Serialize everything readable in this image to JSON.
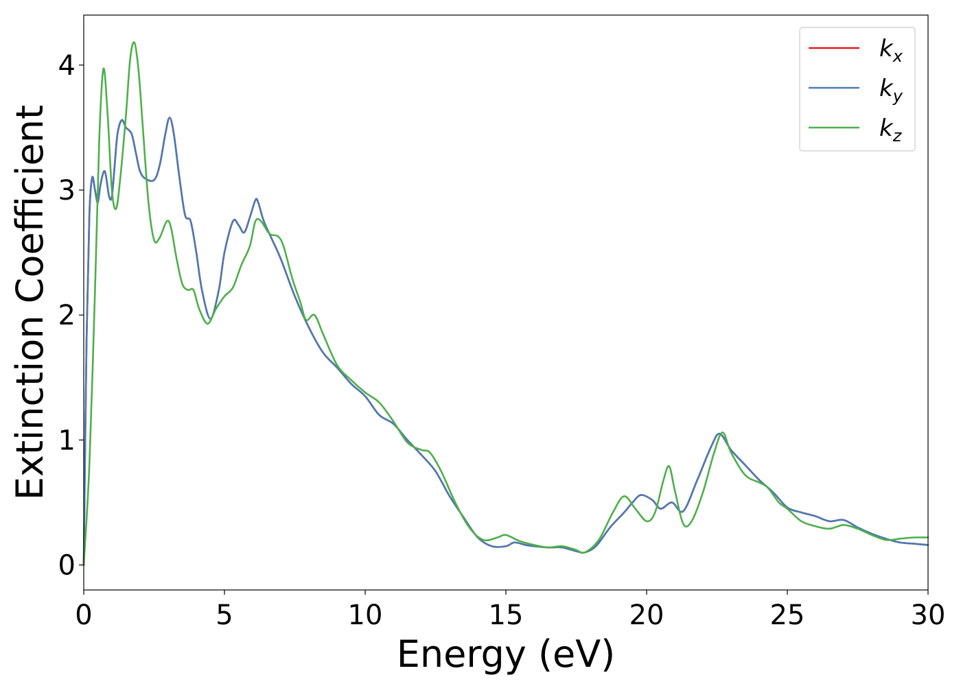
{
  "chart_data": {
    "type": "line",
    "xlabel": "Energy (eV)",
    "ylabel": "Extinction Coefficient",
    "xlim": [
      0,
      30
    ],
    "ylim": [
      -0.2,
      4.4
    ],
    "xticks": [
      0,
      5,
      10,
      15,
      20,
      25,
      30
    ],
    "xtick_labels": [
      "0",
      "5",
      "10",
      "15",
      "20",
      "25",
      "30"
    ],
    "yticks": [
      0,
      1,
      2,
      3,
      4
    ],
    "ytick_labels": [
      "0",
      "1",
      "2",
      "3",
      "4"
    ],
    "grid": false,
    "legend_position": "top-right",
    "series": [
      {
        "name": "k",
        "subscript": "x",
        "color": "#e41a1c",
        "points": [
          [
            0,
            0
          ],
          [
            0.1,
            1.8
          ],
          [
            0.2,
            2.8
          ],
          [
            0.3,
            3.1
          ],
          [
            0.4,
            3.0
          ],
          [
            0.5,
            2.9
          ],
          [
            0.6,
            3.05
          ],
          [
            0.75,
            3.15
          ],
          [
            0.9,
            2.95
          ],
          [
            1.0,
            2.95
          ],
          [
            1.1,
            3.2
          ],
          [
            1.2,
            3.45
          ],
          [
            1.35,
            3.56
          ],
          [
            1.5,
            3.5
          ],
          [
            1.7,
            3.45
          ],
          [
            1.85,
            3.3
          ],
          [
            2.0,
            3.15
          ],
          [
            2.2,
            3.09
          ],
          [
            2.5,
            3.08
          ],
          [
            2.7,
            3.2
          ],
          [
            2.9,
            3.45
          ],
          [
            3.05,
            3.58
          ],
          [
            3.2,
            3.45
          ],
          [
            3.4,
            3.1
          ],
          [
            3.6,
            2.8
          ],
          [
            3.8,
            2.75
          ],
          [
            4.0,
            2.5
          ],
          [
            4.2,
            2.2
          ],
          [
            4.5,
            1.97
          ],
          [
            4.8,
            2.2
          ],
          [
            5.0,
            2.5
          ],
          [
            5.3,
            2.75
          ],
          [
            5.5,
            2.72
          ],
          [
            5.7,
            2.66
          ],
          [
            5.9,
            2.78
          ],
          [
            6.1,
            2.92
          ],
          [
            6.2,
            2.9
          ],
          [
            6.4,
            2.75
          ],
          [
            6.7,
            2.6
          ],
          [
            7.0,
            2.45
          ],
          [
            7.5,
            2.15
          ],
          [
            8.0,
            1.9
          ],
          [
            8.5,
            1.7
          ],
          [
            9.0,
            1.58
          ],
          [
            9.5,
            1.45
          ],
          [
            10.0,
            1.35
          ],
          [
            10.5,
            1.2
          ],
          [
            11.0,
            1.13
          ],
          [
            11.5,
            1.0
          ],
          [
            12.0,
            0.88
          ],
          [
            12.5,
            0.75
          ],
          [
            13.0,
            0.55
          ],
          [
            13.5,
            0.38
          ],
          [
            14.0,
            0.22
          ],
          [
            14.5,
            0.15
          ],
          [
            15.0,
            0.15
          ],
          [
            15.3,
            0.18
          ],
          [
            15.7,
            0.16
          ],
          [
            16.0,
            0.15
          ],
          [
            16.5,
            0.14
          ],
          [
            17.0,
            0.14
          ],
          [
            17.5,
            0.11
          ],
          [
            17.8,
            0.1
          ],
          [
            18.2,
            0.15
          ],
          [
            18.7,
            0.3
          ],
          [
            19.2,
            0.42
          ],
          [
            19.5,
            0.5
          ],
          [
            19.8,
            0.56
          ],
          [
            20.2,
            0.52
          ],
          [
            20.5,
            0.45
          ],
          [
            20.9,
            0.5
          ],
          [
            21.3,
            0.43
          ],
          [
            21.8,
            0.68
          ],
          [
            22.3,
            0.95
          ],
          [
            22.6,
            1.05
          ],
          [
            23.0,
            0.92
          ],
          [
            23.5,
            0.8
          ],
          [
            24.0,
            0.68
          ],
          [
            24.5,
            0.58
          ],
          [
            25.0,
            0.46
          ],
          [
            25.5,
            0.42
          ],
          [
            26.0,
            0.39
          ],
          [
            26.5,
            0.35
          ],
          [
            27.0,
            0.36
          ],
          [
            27.5,
            0.3
          ],
          [
            28.0,
            0.25
          ],
          [
            28.5,
            0.21
          ],
          [
            29.0,
            0.18
          ],
          [
            29.5,
            0.17
          ],
          [
            30.0,
            0.16
          ]
        ]
      },
      {
        "name": "k",
        "subscript": "y",
        "color": "#4a7ab5",
        "points": [
          [
            0,
            0
          ],
          [
            0.1,
            1.8
          ],
          [
            0.2,
            2.8
          ],
          [
            0.3,
            3.1
          ],
          [
            0.4,
            3.0
          ],
          [
            0.5,
            2.9
          ],
          [
            0.6,
            3.05
          ],
          [
            0.75,
            3.15
          ],
          [
            0.9,
            2.95
          ],
          [
            1.0,
            2.95
          ],
          [
            1.1,
            3.2
          ],
          [
            1.2,
            3.45
          ],
          [
            1.35,
            3.56
          ],
          [
            1.5,
            3.5
          ],
          [
            1.7,
            3.45
          ],
          [
            1.85,
            3.3
          ],
          [
            2.0,
            3.15
          ],
          [
            2.2,
            3.09
          ],
          [
            2.5,
            3.08
          ],
          [
            2.7,
            3.2
          ],
          [
            2.9,
            3.45
          ],
          [
            3.05,
            3.58
          ],
          [
            3.2,
            3.45
          ],
          [
            3.4,
            3.1
          ],
          [
            3.6,
            2.8
          ],
          [
            3.8,
            2.75
          ],
          [
            4.0,
            2.5
          ],
          [
            4.2,
            2.2
          ],
          [
            4.5,
            1.97
          ],
          [
            4.8,
            2.2
          ],
          [
            5.0,
            2.5
          ],
          [
            5.3,
            2.75
          ],
          [
            5.5,
            2.72
          ],
          [
            5.7,
            2.66
          ],
          [
            5.9,
            2.78
          ],
          [
            6.1,
            2.92
          ],
          [
            6.2,
            2.9
          ],
          [
            6.4,
            2.75
          ],
          [
            6.7,
            2.6
          ],
          [
            7.0,
            2.45
          ],
          [
            7.5,
            2.15
          ],
          [
            8.0,
            1.9
          ],
          [
            8.5,
            1.7
          ],
          [
            9.0,
            1.58
          ],
          [
            9.5,
            1.45
          ],
          [
            10.0,
            1.35
          ],
          [
            10.5,
            1.2
          ],
          [
            11.0,
            1.13
          ],
          [
            11.5,
            1.0
          ],
          [
            12.0,
            0.88
          ],
          [
            12.5,
            0.75
          ],
          [
            13.0,
            0.55
          ],
          [
            13.5,
            0.38
          ],
          [
            14.0,
            0.22
          ],
          [
            14.5,
            0.15
          ],
          [
            15.0,
            0.15
          ],
          [
            15.3,
            0.18
          ],
          [
            15.7,
            0.16
          ],
          [
            16.0,
            0.15
          ],
          [
            16.5,
            0.14
          ],
          [
            17.0,
            0.14
          ],
          [
            17.5,
            0.11
          ],
          [
            17.8,
            0.1
          ],
          [
            18.2,
            0.15
          ],
          [
            18.7,
            0.3
          ],
          [
            19.2,
            0.42
          ],
          [
            19.5,
            0.5
          ],
          [
            19.8,
            0.56
          ],
          [
            20.2,
            0.52
          ],
          [
            20.5,
            0.45
          ],
          [
            20.9,
            0.5
          ],
          [
            21.3,
            0.43
          ],
          [
            21.8,
            0.68
          ],
          [
            22.3,
            0.95
          ],
          [
            22.6,
            1.05
          ],
          [
            23.0,
            0.92
          ],
          [
            23.5,
            0.8
          ],
          [
            24.0,
            0.68
          ],
          [
            24.5,
            0.58
          ],
          [
            25.0,
            0.46
          ],
          [
            25.5,
            0.42
          ],
          [
            26.0,
            0.39
          ],
          [
            26.5,
            0.35
          ],
          [
            27.0,
            0.36
          ],
          [
            27.5,
            0.3
          ],
          [
            28.0,
            0.25
          ],
          [
            28.5,
            0.21
          ],
          [
            29.0,
            0.18
          ],
          [
            29.5,
            0.17
          ],
          [
            30.0,
            0.16
          ]
        ]
      },
      {
        "name": "k",
        "subscript": "z",
        "color": "#4daf4a",
        "points": [
          [
            0,
            0
          ],
          [
            0.2,
            0.8
          ],
          [
            0.4,
            2.2
          ],
          [
            0.55,
            3.4
          ],
          [
            0.7,
            3.97
          ],
          [
            0.85,
            3.6
          ],
          [
            1.0,
            3.0
          ],
          [
            1.15,
            2.85
          ],
          [
            1.3,
            3.1
          ],
          [
            1.5,
            3.6
          ],
          [
            1.65,
            4.05
          ],
          [
            1.8,
            4.18
          ],
          [
            1.95,
            3.95
          ],
          [
            2.1,
            3.5
          ],
          [
            2.3,
            2.9
          ],
          [
            2.5,
            2.6
          ],
          [
            2.7,
            2.62
          ],
          [
            2.95,
            2.75
          ],
          [
            3.1,
            2.7
          ],
          [
            3.3,
            2.45
          ],
          [
            3.5,
            2.25
          ],
          [
            3.7,
            2.2
          ],
          [
            3.9,
            2.2
          ],
          [
            4.1,
            2.05
          ],
          [
            4.4,
            1.93
          ],
          [
            4.7,
            2.05
          ],
          [
            5.0,
            2.15
          ],
          [
            5.3,
            2.22
          ],
          [
            5.6,
            2.4
          ],
          [
            5.9,
            2.55
          ],
          [
            6.1,
            2.75
          ],
          [
            6.3,
            2.75
          ],
          [
            6.6,
            2.65
          ],
          [
            6.9,
            2.63
          ],
          [
            7.1,
            2.55
          ],
          [
            7.4,
            2.3
          ],
          [
            7.7,
            2.1
          ],
          [
            7.9,
            1.96
          ],
          [
            8.2,
            2.0
          ],
          [
            8.5,
            1.85
          ],
          [
            9.0,
            1.6
          ],
          [
            9.5,
            1.48
          ],
          [
            10.0,
            1.38
          ],
          [
            10.5,
            1.3
          ],
          [
            11.0,
            1.15
          ],
          [
            11.5,
            0.98
          ],
          [
            12.0,
            0.92
          ],
          [
            12.3,
            0.9
          ],
          [
            12.7,
            0.75
          ],
          [
            13.2,
            0.5
          ],
          [
            13.7,
            0.3
          ],
          [
            14.2,
            0.2
          ],
          [
            14.7,
            0.22
          ],
          [
            15.0,
            0.24
          ],
          [
            15.5,
            0.19
          ],
          [
            16.0,
            0.16
          ],
          [
            16.5,
            0.14
          ],
          [
            17.0,
            0.15
          ],
          [
            17.5,
            0.12
          ],
          [
            17.8,
            0.1
          ],
          [
            18.3,
            0.2
          ],
          [
            18.8,
            0.42
          ],
          [
            19.2,
            0.55
          ],
          [
            19.6,
            0.45
          ],
          [
            20.0,
            0.35
          ],
          [
            20.3,
            0.42
          ],
          [
            20.6,
            0.68
          ],
          [
            20.8,
            0.79
          ],
          [
            21.0,
            0.6
          ],
          [
            21.3,
            0.33
          ],
          [
            21.6,
            0.35
          ],
          [
            22.0,
            0.58
          ],
          [
            22.4,
            0.9
          ],
          [
            22.7,
            1.06
          ],
          [
            23.0,
            0.9
          ],
          [
            23.5,
            0.72
          ],
          [
            24.0,
            0.66
          ],
          [
            24.3,
            0.62
          ],
          [
            24.7,
            0.5
          ],
          [
            25.0,
            0.45
          ],
          [
            25.5,
            0.35
          ],
          [
            26.0,
            0.31
          ],
          [
            26.5,
            0.29
          ],
          [
            27.0,
            0.32
          ],
          [
            27.5,
            0.29
          ],
          [
            28.0,
            0.24
          ],
          [
            28.5,
            0.2
          ],
          [
            29.0,
            0.21
          ],
          [
            29.5,
            0.22
          ],
          [
            30.0,
            0.22
          ]
        ]
      }
    ]
  }
}
